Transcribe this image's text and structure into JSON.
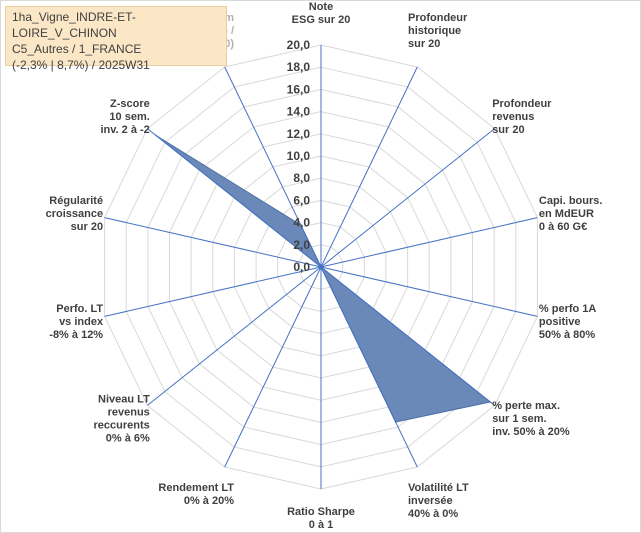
{
  "header": {
    "lines": [
      "1ha_Vigne_INDRE-ET-LOIRE_V_CHINON",
      "C5_Autres / 1_FRANCE",
      "(-2,3% | 8,7%) / 2025W31"
    ]
  },
  "chart_data": {
    "type": "radar",
    "title": "",
    "rmin": 0,
    "rmax": 20,
    "ticks": [
      "0,0",
      "2,0",
      "4,0",
      "6,0",
      "8,0",
      "10,0",
      "12,0",
      "14,0",
      "16,0",
      "18,0",
      "20,0"
    ],
    "categories": [
      {
        "lines": [
          "Note",
          "ESG sur 20"
        ],
        "muted": false
      },
      {
        "lines": [
          "Profondeur",
          "historique",
          "sur 20"
        ],
        "muted": false
      },
      {
        "lines": [
          "Profondeur",
          "revenus",
          "sur 20"
        ],
        "muted": false
      },
      {
        "lines": [
          "Capi. bours.",
          "en MdEUR",
          "0 à 60 G€"
        ],
        "muted": false
      },
      {
        "lines": [
          "% perfo 1A",
          "positive",
          "50% à 80%"
        ],
        "muted": false
      },
      {
        "lines": [
          "% perte max.",
          "sur 1 sem.",
          "inv. 50% à 20%"
        ],
        "muted": false
      },
      {
        "lines": [
          "Volatilité LT",
          "inversée",
          "40% à 0%"
        ],
        "muted": false
      },
      {
        "lines": [
          "Ratio Sharpe",
          "0 à 1"
        ],
        "muted": false
      },
      {
        "lines": [
          "Rendement LT",
          "0% à 20%"
        ],
        "muted": false
      },
      {
        "lines": [
          "Niveau LT",
          "revenus",
          "reccurents",
          "0% à 6%"
        ],
        "muted": false
      },
      {
        "lines": [
          "Perfo. LT",
          "vs index",
          "-8% à 12%"
        ],
        "muted": false
      },
      {
        "lines": [
          "Régularité",
          "croissance",
          "sur 20"
        ],
        "muted": false
      },
      {
        "lines": [
          "Z-score",
          "10 sem.",
          "inv. 2 à -2"
        ],
        "muted": false
      },
      {
        "lines": [
          "Momentum",
          "Achat (20) /",
          "Vente (0)"
        ],
        "muted": true
      }
    ],
    "series": [
      {
        "values": [
          0,
          0,
          0,
          0,
          0,
          19.5,
          15.5,
          0,
          0,
          0,
          0,
          0,
          19.0,
          4.2
        ]
      }
    ],
    "colors": {
      "fill": "#6b89b8",
      "stroke": "#4a6fa5",
      "grid": "#d9d9d9",
      "spoke": "#4472c4"
    }
  }
}
